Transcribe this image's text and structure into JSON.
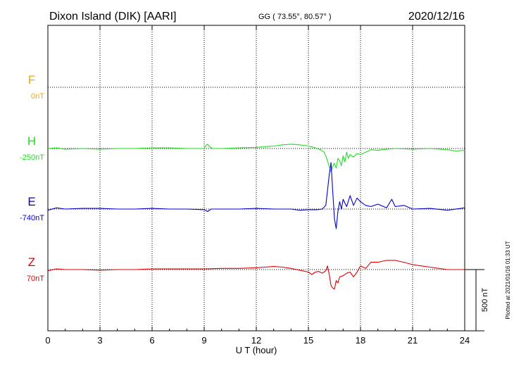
{
  "header": {
    "station": "Dixon Island (DIK)  [AARI]",
    "coords": "GG ( 73.55°,  80.57° )",
    "date": "2020/12/16"
  },
  "colors": {
    "F": "#f5a800",
    "H": "#22dd22",
    "E": "#0000cc",
    "Z": "#dd0000"
  },
  "channels": [
    {
      "key": "F",
      "label": "F",
      "baseline": "0nT"
    },
    {
      "key": "H",
      "label": "H",
      "baseline": "-250nT"
    },
    {
      "key": "E",
      "label": "E",
      "baseline": "-740nT"
    },
    {
      "key": "Z",
      "label": "Z",
      "baseline": "70nT"
    }
  ],
  "scale_label": "500 nT",
  "plotted_note": "Plotted at 2021/01/16 01:33 UT",
  "chart_data": {
    "type": "line",
    "xlabel": "U T (hour)",
    "xlim": [
      0,
      24
    ],
    "x_ticks": [
      "0",
      "3",
      "6",
      "9",
      "12",
      "15",
      "18",
      "21",
      "24"
    ],
    "channel_spacing_nT": 500,
    "grid": true,
    "series": [
      {
        "name": "H",
        "x": [
          0,
          0.5,
          1,
          2,
          3,
          4,
          5,
          6,
          7,
          8,
          9,
          9.1,
          9.2,
          9.3,
          9.5,
          10,
          11,
          12,
          13,
          13.5,
          14,
          14.5,
          15,
          15.3,
          15.5,
          15.7,
          15.9,
          16,
          16.1,
          16.2,
          16.3,
          16.4,
          16.5,
          16.6,
          16.7,
          16.8,
          16.9,
          17,
          17.1,
          17.2,
          17.3,
          17.4,
          17.6,
          17.8,
          18,
          18.3,
          18.6,
          19,
          19.5,
          20,
          21,
          22,
          23,
          23.5,
          24
        ],
        "values": [
          0,
          5,
          -5,
          0,
          -5,
          0,
          0,
          5,
          5,
          0,
          0,
          25,
          35,
          15,
          0,
          0,
          5,
          10,
          20,
          30,
          35,
          30,
          20,
          10,
          0,
          -10,
          -30,
          -60,
          -100,
          -150,
          -190,
          -150,
          -120,
          -160,
          -80,
          -100,
          -140,
          -60,
          -110,
          -30,
          -80,
          -50,
          -70,
          -40,
          -50,
          -30,
          -10,
          -15,
          -5,
          0,
          -5,
          0,
          -10,
          -20,
          -15
        ]
      },
      {
        "name": "E",
        "x": [
          0,
          0.5,
          1,
          2,
          3,
          4,
          5,
          6,
          7,
          8,
          9,
          9.2,
          9.4,
          10,
          11,
          12,
          13,
          14,
          14.5,
          15,
          15.5,
          15.8,
          16,
          16.1,
          16.2,
          16.3,
          16.4,
          16.5,
          16.6,
          16.7,
          16.8,
          16.9,
          17,
          17.2,
          17.4,
          17.6,
          17.8,
          18,
          18.3,
          18.6,
          19,
          19.5,
          19.8,
          20,
          20.5,
          21,
          22,
          23,
          24
        ],
        "values": [
          -10,
          10,
          0,
          5,
          5,
          0,
          0,
          5,
          0,
          0,
          -5,
          -20,
          0,
          0,
          0,
          5,
          0,
          0,
          -10,
          -5,
          -5,
          0,
          30,
          150,
          280,
          380,
          150,
          -80,
          -160,
          -20,
          60,
          0,
          80,
          20,
          110,
          30,
          90,
          60,
          30,
          20,
          40,
          10,
          80,
          20,
          30,
          0,
          5,
          -10,
          10
        ]
      },
      {
        "name": "Z",
        "x": [
          0,
          0.5,
          1,
          2,
          3,
          4,
          5,
          6,
          7,
          8,
          9,
          10,
          11,
          12,
          12.5,
          13,
          13.5,
          14,
          14.5,
          15,
          15.2,
          15.4,
          15.6,
          15.8,
          16,
          16.1,
          16.2,
          16.3,
          16.4,
          16.5,
          16.6,
          16.7,
          16.8,
          17,
          17.2,
          17.4,
          17.6,
          17.8,
          18,
          18.3,
          18.6,
          19,
          19.5,
          20,
          20.5,
          21,
          21.5,
          22,
          23,
          24
        ],
        "values": [
          -10,
          5,
          0,
          0,
          -5,
          0,
          0,
          5,
          5,
          5,
          5,
          10,
          10,
          15,
          20,
          25,
          20,
          10,
          -5,
          -20,
          -40,
          -20,
          -15,
          -30,
          -10,
          30,
          -40,
          -130,
          -150,
          -160,
          -90,
          -110,
          -60,
          -50,
          -30,
          -20,
          -60,
          -20,
          30,
          10,
          60,
          60,
          75,
          75,
          60,
          40,
          30,
          20,
          0,
          0
        ]
      }
    ]
  }
}
